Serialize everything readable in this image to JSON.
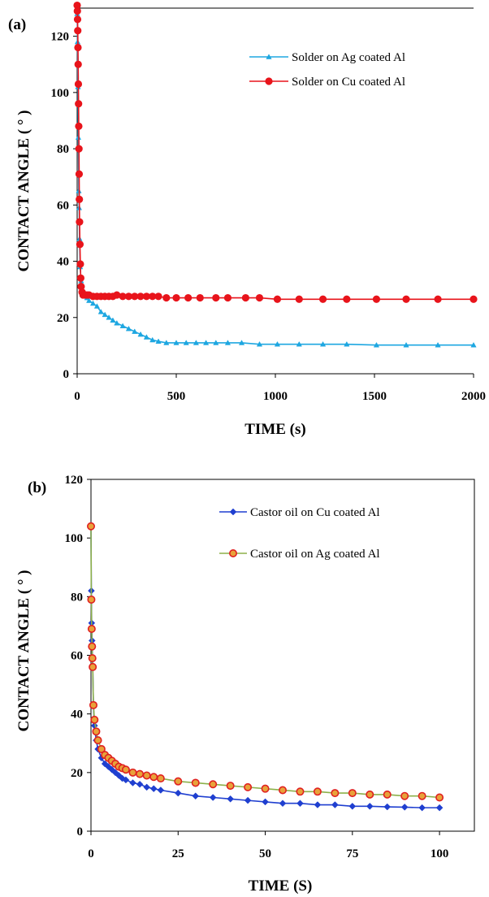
{
  "chart_data": [
    {
      "panel": "(a)",
      "type": "line",
      "xlabel": "TIME (s)",
      "ylabel": "CONTACT ANGLE ( ° )",
      "xlim": [
        0,
        2000
      ],
      "ylim": [
        0,
        130
      ],
      "xticks": [
        0,
        500,
        1000,
        1500,
        2000
      ],
      "yticks": [
        0,
        20,
        40,
        60,
        80,
        100,
        120
      ],
      "legend_position": "top-right",
      "series": [
        {
          "name": "Solder on Ag coated Al",
          "color": "#1ea7e1",
          "marker": "triangle",
          "x": [
            0,
            2,
            4,
            6,
            8,
            10,
            12,
            15,
            20,
            25,
            30,
            40,
            50,
            60,
            80,
            100,
            120,
            140,
            160,
            180,
            200,
            230,
            260,
            290,
            320,
            350,
            380,
            410,
            450,
            500,
            550,
            600,
            650,
            700,
            760,
            830,
            920,
            1010,
            1120,
            1240,
            1360,
            1510,
            1660,
            1820,
            2000
          ],
          "y": [
            128,
            118,
            102,
            84,
            65,
            59,
            48,
            38,
            33,
            30,
            29,
            28,
            27,
            26,
            25,
            24,
            22,
            21,
            20,
            19,
            18,
            17,
            16,
            15,
            14,
            13,
            12,
            11.5,
            11,
            11,
            11,
            11,
            11,
            11,
            11,
            11,
            10.5,
            10.5,
            10.5,
            10.5,
            10.5,
            10.2,
            10.2,
            10.2,
            10.2
          ]
        },
        {
          "name": "Solder on Cu coated Al",
          "color": "#e8141b",
          "marker": "circle",
          "x": [
            0,
            1,
            2,
            3,
            4,
            5,
            6,
            7,
            8,
            9,
            10,
            11,
            12,
            14,
            16,
            18,
            20,
            25,
            30,
            40,
            50,
            60,
            80,
            100,
            120,
            140,
            160,
            180,
            200,
            230,
            260,
            290,
            320,
            350,
            380,
            410,
            450,
            500,
            560,
            620,
            700,
            760,
            850,
            920,
            1010,
            1120,
            1240,
            1360,
            1510,
            1660,
            1820,
            2000
          ],
          "y": [
            131,
            129,
            126,
            122,
            116,
            110,
            103,
            96,
            88,
            80,
            71,
            62,
            54,
            46,
            39,
            34,
            31,
            29,
            28,
            28,
            28,
            28,
            27.5,
            27.5,
            27.5,
            27.5,
            27.5,
            27.5,
            28,
            27.5,
            27.5,
            27.5,
            27.5,
            27.5,
            27.5,
            27.5,
            27,
            27,
            27,
            27,
            27,
            27,
            27,
            27,
            26.5,
            26.5,
            26.5,
            26.5,
            26.5,
            26.5,
            26.5,
            26.5
          ]
        }
      ]
    },
    {
      "panel": "(b)",
      "type": "line",
      "xlabel": "TIME (S)",
      "ylabel": "CONTACT ANGLE ( ° )",
      "xlim": [
        0,
        110
      ],
      "ylim": [
        0,
        120
      ],
      "xticks": [
        0,
        25,
        50,
        75,
        100
      ],
      "yticks": [
        0,
        20,
        40,
        60,
        80,
        100,
        120
      ],
      "legend_position": "top-right",
      "series": [
        {
          "name": "Castor oil on Cu coated Al",
          "color": "#1f3fd0",
          "marker": "diamond",
          "x": [
            0,
            0.1,
            0.2,
            0.3,
            0.5,
            0.7,
            1,
            1.5,
            2,
            3,
            4,
            5,
            6,
            7,
            8,
            9,
            10,
            12,
            14,
            16,
            18,
            20,
            25,
            30,
            35,
            40,
            45,
            50,
            55,
            60,
            65,
            70,
            75,
            80,
            85,
            90,
            95,
            100
          ],
          "y": [
            104,
            82,
            71,
            65,
            56,
            43,
            36,
            31,
            28,
            25,
            23,
            22,
            21,
            20,
            19,
            18,
            17.5,
            16.5,
            16,
            15,
            14.5,
            14,
            13,
            12,
            11.5,
            11,
            10.5,
            10,
            9.5,
            9.5,
            9,
            9,
            8.5,
            8.5,
            8.3,
            8.2,
            8,
            8
          ]
        },
        {
          "name": "Castor oil on Ag coated Al",
          "color": "#e02020",
          "line_color": "#8db04a",
          "marker_fill": "#e8a23a",
          "marker": "circle",
          "x": [
            0,
            0.1,
            0.2,
            0.3,
            0.4,
            0.5,
            0.7,
            1,
            1.5,
            2,
            3,
            4,
            5,
            6,
            7,
            8,
            9,
            10,
            12,
            14,
            16,
            18,
            20,
            25,
            30,
            35,
            40,
            45,
            50,
            55,
            60,
            65,
            70,
            75,
            80,
            85,
            90,
            95,
            100
          ],
          "y": [
            104,
            79,
            69,
            63,
            59,
            56,
            43,
            38,
            34,
            31,
            28,
            26,
            25,
            24,
            23,
            22,
            21.5,
            21,
            20,
            19.5,
            19,
            18.5,
            18,
            17,
            16.5,
            16,
            15.5,
            15,
            14.5,
            14,
            13.5,
            13.5,
            13,
            13,
            12.5,
            12.5,
            12,
            12,
            11.5
          ]
        }
      ]
    }
  ]
}
